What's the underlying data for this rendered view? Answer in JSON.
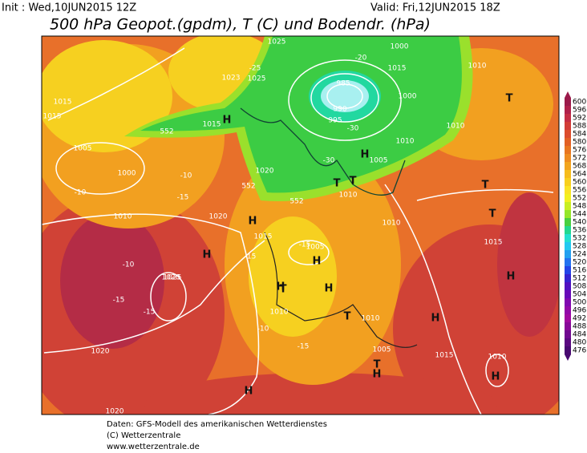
{
  "header": {
    "init": "Init : Wed,10JUN2015 12Z",
    "valid": "Valid: Fri,12JUN2015 18Z",
    "title": "500 hPa Geopot.(gpdm), T (C) und Bodendr. (hPa)"
  },
  "colorbar": {
    "levels": [
      600,
      596,
      592,
      588,
      584,
      580,
      576,
      572,
      568,
      564,
      560,
      556,
      552,
      548,
      544,
      540,
      536,
      532,
      528,
      524,
      520,
      516,
      512,
      508,
      504,
      500,
      496,
      492,
      488,
      484,
      480,
      476
    ],
    "colors": [
      "#9b1a4a",
      "#b0204a",
      "#c42c44",
      "#d23c36",
      "#dc4c2c",
      "#e26024",
      "#e87620",
      "#ee8c20",
      "#f2a41e",
      "#f6bc1c",
      "#f8d01e",
      "#fae424",
      "#f2f020",
      "#c8ee22",
      "#94e62a",
      "#48d040",
      "#22d890",
      "#22e0d0",
      "#22c8f0",
      "#22a0f0",
      "#2272f0",
      "#2244e8",
      "#3422d0",
      "#5010c0",
      "#6808b8",
      "#8008b0",
      "#9208a8",
      "#a008a0",
      "#880898",
      "#700890",
      "#5a0880",
      "#480870"
    ]
  },
  "map": {
    "labels": [
      "1025",
      "1000",
      "1015",
      "985",
      "990",
      "995",
      "1000",
      "1010",
      "1010",
      "1005",
      "1005",
      "1000",
      "1015",
      "1015",
      "1023",
      "1025",
      "1015",
      "1020",
      "1010",
      "1010",
      "1010",
      "1020",
      "1015",
      "1005",
      "1010",
      "1020",
      "1025",
      "1010",
      "1005",
      "1015",
      "1010",
      "1020",
      "1020",
      "1015",
      "1010",
      "552",
      "552",
      "552",
      "-25",
      "-20",
      "-30",
      "-30",
      "-15",
      "-15",
      "-10",
      "-10",
      "-15",
      "-10",
      "-15",
      "-15",
      "-10",
      "-15",
      "H",
      "H",
      "H",
      "H",
      "H",
      "H",
      "H",
      "H",
      "H",
      "H",
      "H",
      "H",
      "T",
      "T",
      "T",
      "T",
      "T",
      "T",
      "T",
      "T"
    ]
  },
  "footer": {
    "lines": [
      "Daten: GFS-Modell des amerikanischen Wetterdienstes",
      "(C) Wetterzentrale",
      "www.wetterzentrale.de"
    ]
  }
}
